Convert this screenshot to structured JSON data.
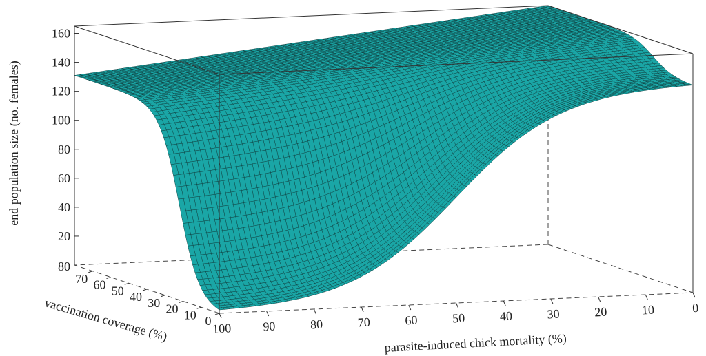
{
  "chart_data": {
    "type": "surface",
    "zlabel": "end population size (no. females)",
    "xlabel": "parasite-induced chick mortality (%)",
    "ylabel": "vaccination coverage (%)",
    "z_ticks": [
      "20",
      "40",
      "60",
      "80",
      "100",
      "120",
      "140",
      "160"
    ],
    "z_floor_label": "80",
    "zlim": [
      0,
      165
    ],
    "x_ticks": [
      "100",
      "90",
      "80",
      "70",
      "60",
      "50",
      "40",
      "30",
      "20",
      "10",
      "0"
    ],
    "xlim": [
      100,
      0
    ],
    "y_ticks": [
      "0",
      "10",
      "20",
      "30",
      "40",
      "50",
      "60",
      "70"
    ],
    "ylim": [
      0,
      80
    ],
    "surface_color": "#1aa6a6",
    "mesh_color": "#0d3b3b",
    "surface_samples": {
      "note_axes": "z as function of chick mortality (x) at vaccination coverage 0",
      "x": [
        100,
        90,
        80,
        70,
        60,
        50,
        40,
        30,
        20,
        10,
        0
      ],
      "z_at_coverage_0": [
        0,
        1,
        6,
        18,
        40,
        68,
        96,
        118,
        133,
        142,
        146
      ],
      "z_at_coverage_80": [
        131,
        135,
        140,
        145,
        150,
        155,
        160,
        162,
        164,
        165,
        165
      ]
    }
  }
}
